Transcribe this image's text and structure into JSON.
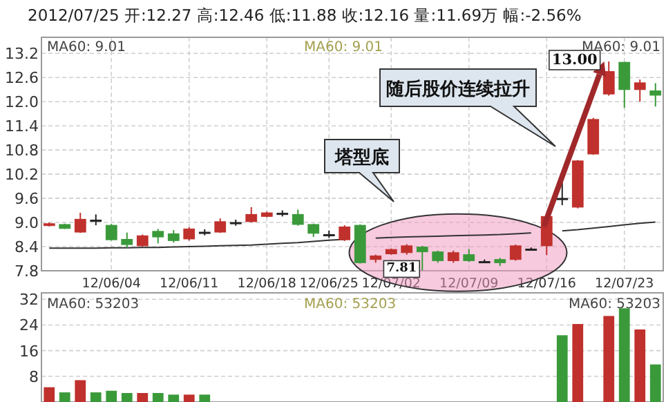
{
  "chart_data": [
    {
      "type": "candlestick",
      "title": "2012/07/25 开:12.27 高:12.46 低:11.88 收:12.16 量:11.69万 幅:-2.56%",
      "categories": [
        null,
        null,
        null,
        null,
        "12/06/04",
        null,
        null,
        null,
        null,
        "12/06/11",
        null,
        null,
        null,
        null,
        "12/06/18",
        null,
        null,
        null,
        "12/06/25",
        null,
        null,
        null,
        "12/07/02",
        null,
        null,
        null,
        null,
        "12/07/09",
        null,
        null,
        null,
        null,
        "12/07/16",
        null,
        null,
        null,
        null,
        "12/07/23",
        null,
        null
      ],
      "ohlc": [
        [
          8.92,
          9.0,
          8.9,
          8.97
        ],
        [
          8.95,
          8.97,
          8.84,
          8.85
        ],
        [
          8.76,
          9.24,
          8.74,
          9.08
        ],
        [
          9.06,
          9.2,
          8.93,
          9.06
        ],
        [
          8.93,
          8.96,
          8.55,
          8.57
        ],
        [
          8.58,
          8.75,
          8.36,
          8.45
        ],
        [
          8.42,
          8.7,
          8.4,
          8.67
        ],
        [
          8.78,
          8.84,
          8.48,
          8.64
        ],
        [
          8.72,
          8.81,
          8.5,
          8.55
        ],
        [
          8.59,
          8.88,
          8.55,
          8.84
        ],
        [
          8.76,
          8.83,
          8.68,
          8.76
        ],
        [
          8.76,
          9.1,
          8.74,
          9.02
        ],
        [
          9.0,
          9.07,
          8.92,
          9.0
        ],
        [
          9.02,
          9.38,
          9.0,
          9.2
        ],
        [
          9.15,
          9.27,
          9.13,
          9.24
        ],
        [
          9.23,
          9.3,
          9.15,
          9.23
        ],
        [
          9.2,
          9.32,
          8.92,
          8.95
        ],
        [
          8.95,
          8.97,
          8.64,
          8.73
        ],
        [
          8.7,
          8.8,
          8.62,
          8.7
        ],
        [
          8.57,
          8.93,
          8.54,
          8.89
        ],
        [
          8.93,
          8.95,
          7.98,
          8.0
        ],
        [
          8.08,
          8.2,
          8.0,
          8.17
        ],
        [
          8.22,
          8.35,
          8.2,
          8.33
        ],
        [
          8.25,
          8.46,
          8.2,
          8.42
        ],
        [
          8.39,
          8.42,
          7.81,
          8.27
        ],
        [
          8.27,
          8.3,
          8.0,
          8.05
        ],
        [
          8.05,
          8.3,
          8.0,
          8.25
        ],
        [
          8.2,
          8.34,
          8.02,
          8.05
        ],
        [
          8.03,
          8.08,
          8.0,
          8.03
        ],
        [
          8.08,
          8.12,
          7.92,
          8.0
        ],
        [
          8.08,
          8.45,
          8.05,
          8.42
        ],
        [
          8.34,
          8.38,
          8.3,
          8.34
        ],
        [
          8.42,
          9.2,
          8.19,
          9.15
        ],
        [
          9.6,
          9.99,
          9.43,
          9.6
        ],
        [
          9.38,
          10.55,
          9.35,
          10.53
        ],
        [
          10.7,
          11.6,
          10.68,
          11.56
        ],
        [
          12.19,
          13.0,
          12.15,
          12.75
        ],
        [
          12.98,
          12.99,
          11.85,
          12.3
        ],
        [
          12.3,
          12.55,
          12.0,
          12.47
        ],
        [
          12.27,
          12.46,
          11.88,
          12.16
        ]
      ],
      "colors": [
        "#c0302c",
        "#3a9a3a",
        "#c0302c",
        "#222222",
        "#3a9a3a",
        "#3a9a3a",
        "#c0302c",
        "#3a9a3a",
        "#3a9a3a",
        "#c0302c",
        "#222222",
        "#c0302c",
        "#222222",
        "#c0302c",
        "#c0302c",
        "#222222",
        "#3a9a3a",
        "#3a9a3a",
        "#222222",
        "#c0302c",
        "#3a9a3a",
        "#c0302c",
        "#c0302c",
        "#c0302c",
        "#3a9a3a",
        "#3a9a3a",
        "#c0302c",
        "#3a9a3a",
        "#222222",
        "#3a9a3a",
        "#c0302c",
        "#222222",
        "#c0302c",
        "#222222",
        "#c0302c",
        "#c0302c",
        "#c0302c",
        "#3a9a3a",
        "#c0302c",
        "#3a9a3a"
      ],
      "series": [
        {
          "type": "line",
          "color": "#333333",
          "values": [
            8.36,
            8.36,
            8.36,
            8.36,
            8.37,
            8.37,
            8.38,
            8.38,
            8.39,
            8.4,
            8.41,
            8.42,
            8.43,
            8.44,
            8.46,
            8.48,
            8.5,
            8.53,
            8.56,
            8.58,
            null,
            8.61,
            8.63,
            8.64,
            8.65,
            8.66,
            8.67,
            8.68,
            8.69,
            8.7,
            8.72,
            8.74,
            null,
            8.79,
            8.82,
            8.86,
            8.9,
            8.94,
            8.98,
            9.01
          ]
        }
      ],
      "ylim": [
        7.8,
        13.6
      ],
      "yticks": [
        7.8,
        8.4,
        {
          "value": 9,
          "label": "9.0"
        },
        9.6,
        10.2,
        10.8,
        11.4,
        {
          "value": 12,
          "label": "12.0"
        },
        12.6,
        13.2
      ],
      "grid": true,
      "annotations": [
        "MA60: 9.01",
        "MA60: 9.01",
        "MA60: 9.01",
        "随后股价连续拉升",
        "塔型底",
        {
          "text": "13.00",
          "y": 13.0
        },
        {
          "text": "7.81",
          "y": 7.81
        }
      ]
    },
    {
      "type": "bar",
      "categories": [
        null,
        null,
        null,
        null,
        null,
        null,
        null,
        null,
        null,
        null,
        null,
        null,
        null,
        null,
        null,
        null,
        null,
        null,
        null,
        null,
        null,
        null,
        null,
        null,
        null,
        null,
        null,
        null,
        null,
        null,
        null,
        null,
        null,
        null,
        null,
        null,
        null,
        null,
        null,
        null
      ],
      "values": [
        4.6,
        3,
        6.8,
        3,
        3.5,
        2.8,
        2.8,
        2.8,
        2.3,
        2.3,
        2.3,
        null,
        null,
        null,
        null,
        null,
        null,
        null,
        null,
        null,
        null,
        null,
        null,
        null,
        null,
        null,
        null,
        null,
        null,
        null,
        null,
        null,
        null,
        20.8,
        24.3,
        null,
        26.8,
        29.2,
        22.6,
        11.7
      ],
      "colors": [
        "#c0302c",
        "#3a9a3a",
        "#c0302c",
        "#3a9a3a",
        "#3a9a3a",
        "#3a9a3a",
        "#c0302c",
        "#3a9a3a",
        "#3a9a3a",
        "#c0302c",
        "#3a9a3a",
        null,
        null,
        null,
        null,
        null,
        null,
        null,
        null,
        null,
        null,
        null,
        null,
        null,
        null,
        null,
        null,
        null,
        null,
        null,
        null,
        null,
        null,
        "#3a9a3a",
        "#c0302c",
        null,
        "#c0302c",
        "#3a9a3a",
        "#c0302c",
        "#3a9a3a"
      ],
      "ylim": [
        0,
        34
      ],
      "yticks": [
        8,
        16,
        24,
        32
      ],
      "grid": true,
      "tick_labels": "y",
      "annotations": [
        "MA60: 53203",
        "MA60: 53203",
        "MA60: 53203"
      ]
    }
  ]
}
